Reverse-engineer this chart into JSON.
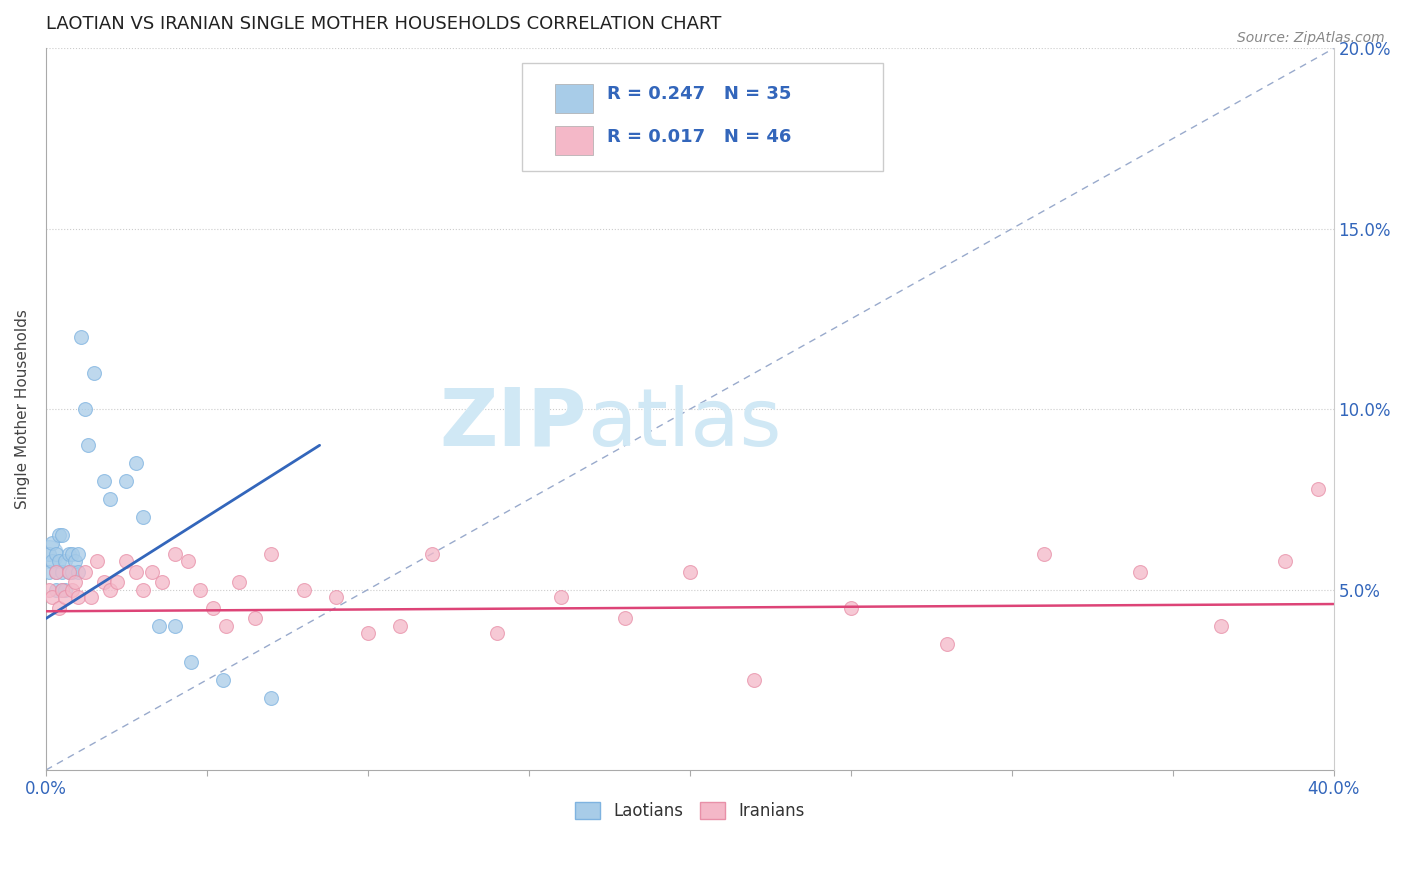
{
  "title": "LAOTIAN VS IRANIAN SINGLE MOTHER HOUSEHOLDS CORRELATION CHART",
  "source_text": "Source: ZipAtlas.com",
  "ylabel": "Single Mother Households",
  "xlim": [
    0.0,
    0.4
  ],
  "ylim": [
    0.0,
    0.2
  ],
  "laotian_color": "#a8cce8",
  "laotian_edge_color": "#7fb3e0",
  "iranian_color": "#f4b8c8",
  "iranian_edge_color": "#e890a8",
  "laotian_R": 0.247,
  "laotian_N": 35,
  "iranian_R": 0.017,
  "iranian_N": 46,
  "laotian_line_color": "#3366bb",
  "iranian_line_color": "#dd4477",
  "diagonal_line_color": "#99aacc",
  "legend_color": "#3366bb",
  "watermark_text": "ZIPatlas",
  "watermark_color": "#d0e8f5",
  "title_color": "#222222",
  "axis_label_color": "#3366bb",
  "laotian_scatter_x": [
    0.001,
    0.001,
    0.002,
    0.002,
    0.003,
    0.003,
    0.003,
    0.004,
    0.004,
    0.005,
    0.005,
    0.005,
    0.006,
    0.006,
    0.007,
    0.007,
    0.008,
    0.008,
    0.009,
    0.01,
    0.01,
    0.011,
    0.012,
    0.013,
    0.015,
    0.018,
    0.02,
    0.025,
    0.028,
    0.03,
    0.035,
    0.04,
    0.045,
    0.055,
    0.07
  ],
  "laotian_scatter_y": [
    0.055,
    0.06,
    0.058,
    0.063,
    0.05,
    0.055,
    0.06,
    0.058,
    0.065,
    0.05,
    0.055,
    0.065,
    0.05,
    0.058,
    0.055,
    0.06,
    0.055,
    0.06,
    0.058,
    0.055,
    0.06,
    0.12,
    0.1,
    0.09,
    0.11,
    0.08,
    0.075,
    0.08,
    0.085,
    0.07,
    0.04,
    0.04,
    0.03,
    0.025,
    0.02
  ],
  "iranian_scatter_x": [
    0.001,
    0.002,
    0.003,
    0.004,
    0.005,
    0.006,
    0.007,
    0.008,
    0.009,
    0.01,
    0.012,
    0.014,
    0.016,
    0.018,
    0.02,
    0.022,
    0.025,
    0.028,
    0.03,
    0.033,
    0.036,
    0.04,
    0.044,
    0.048,
    0.052,
    0.056,
    0.06,
    0.065,
    0.07,
    0.08,
    0.09,
    0.1,
    0.11,
    0.12,
    0.14,
    0.16,
    0.18,
    0.2,
    0.22,
    0.25,
    0.28,
    0.31,
    0.34,
    0.365,
    0.385,
    0.395
  ],
  "iranian_scatter_y": [
    0.05,
    0.048,
    0.055,
    0.045,
    0.05,
    0.048,
    0.055,
    0.05,
    0.052,
    0.048,
    0.055,
    0.048,
    0.058,
    0.052,
    0.05,
    0.052,
    0.058,
    0.055,
    0.05,
    0.055,
    0.052,
    0.06,
    0.058,
    0.05,
    0.045,
    0.04,
    0.052,
    0.042,
    0.06,
    0.05,
    0.048,
    0.038,
    0.04,
    0.06,
    0.038,
    0.048,
    0.042,
    0.055,
    0.025,
    0.045,
    0.035,
    0.06,
    0.055,
    0.04,
    0.058,
    0.078
  ],
  "laotian_line_x": [
    0.0,
    0.085
  ],
  "laotian_line_y": [
    0.042,
    0.09
  ],
  "iranian_line_x": [
    0.0,
    0.4
  ],
  "iranian_line_y": [
    0.044,
    0.046
  ]
}
